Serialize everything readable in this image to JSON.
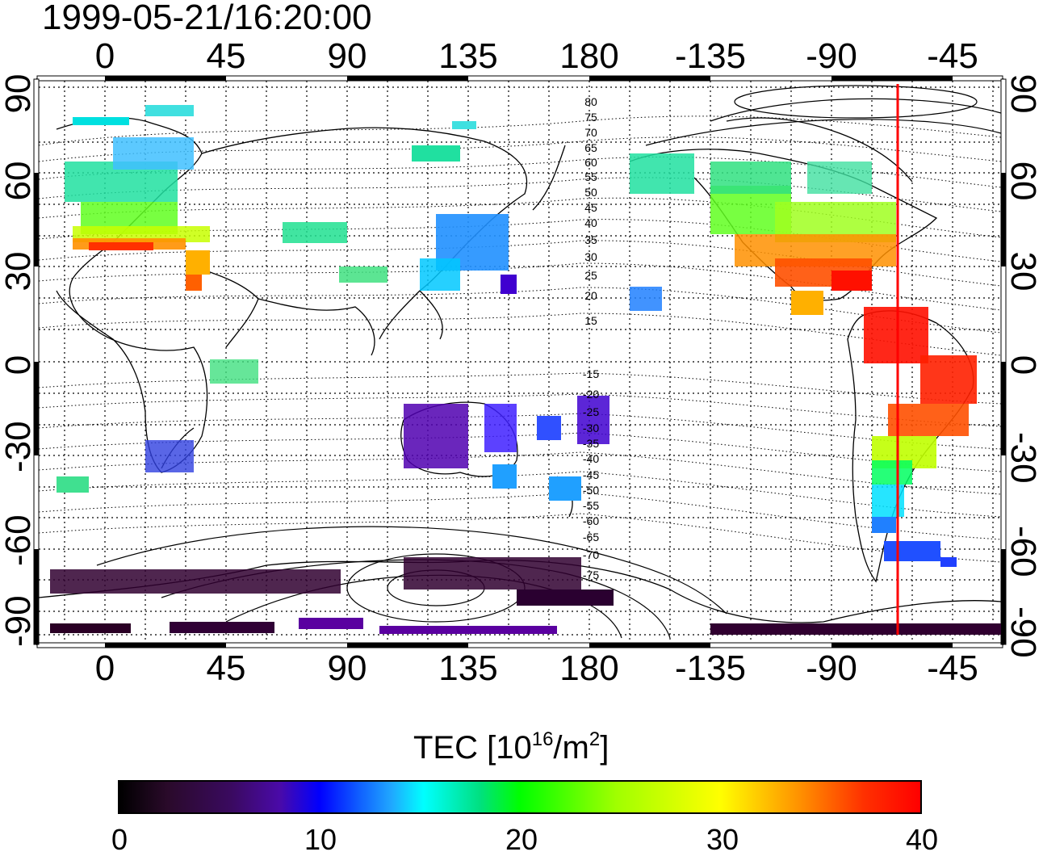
{
  "timestamp": "1999-05-21/16:20:00",
  "map": {
    "lon_ticks_top": [
      "0",
      "45",
      "90",
      "135",
      "180",
      "-135",
      "-90",
      "-45"
    ],
    "lon_ticks_bottom": [
      "0",
      "45",
      "90",
      "135",
      "180",
      "-135",
      "-90",
      "-45"
    ],
    "lat_ticks_left": [
      "90",
      "60",
      "30",
      "0",
      "-30",
      "-60",
      "-90"
    ],
    "lat_ticks_right": [
      "90",
      "60",
      "30",
      "0",
      "-30",
      "-60",
      "-90"
    ],
    "contour_labels_north": [
      "80",
      "75",
      "70",
      "65",
      "60",
      "55",
      "50",
      "45",
      "40",
      "35",
      "30",
      "25",
      "20",
      "15"
    ],
    "contour_labels_south": [
      "-15",
      "-20",
      "-25",
      "-30",
      "-35",
      "-40",
      "-45",
      "-50",
      "-55",
      "-60",
      "-65",
      "-70",
      "-75"
    ],
    "terminator_longitude": -65,
    "terminator_color": "#ff0000"
  },
  "colorbar": {
    "title_prefix": "TEC  [10",
    "title_exp1": "16",
    "title_mid": "/m",
    "title_exp2": "2",
    "title_suffix": "]",
    "ticks": [
      "0",
      "10",
      "20",
      "30",
      "40"
    ],
    "range": [
      0,
      40
    ]
  }
}
